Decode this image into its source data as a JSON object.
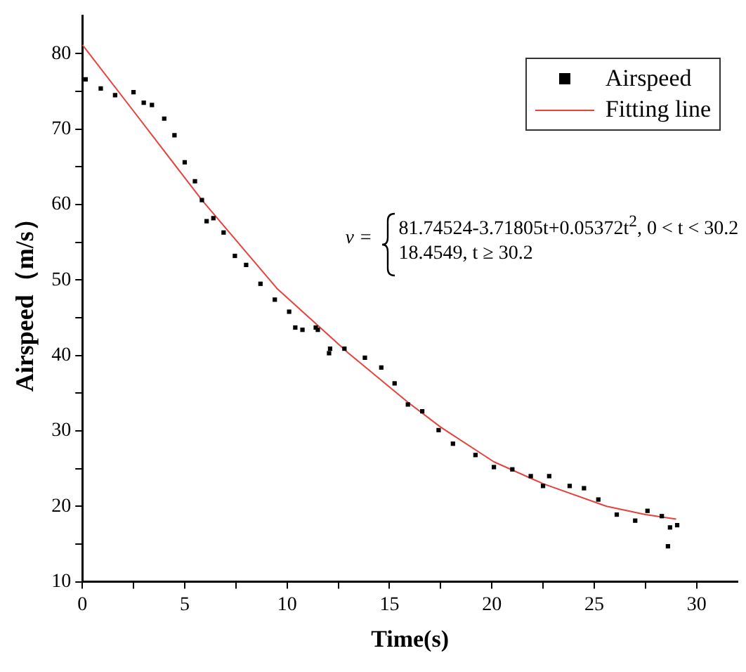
{
  "chart_data": {
    "type": "scatter",
    "xlabel": "Time(s)",
    "ylabel": "Airspeed（m/s）",
    "xlim": [
      0,
      32
    ],
    "ylim": [
      10,
      85
    ],
    "xticks": [
      0,
      {
        "value": 2.5,
        "label": null
      },
      5,
      {
        "value": 7.5,
        "label": null
      },
      10,
      {
        "value": 12.5,
        "label": null
      },
      15,
      {
        "value": 17.5,
        "label": null
      },
      20,
      {
        "value": 22.5,
        "label": null
      },
      25,
      {
        "value": 27.5,
        "label": null
      },
      30
    ],
    "yticks": [
      10,
      {
        "value": 15,
        "label": null
      },
      20,
      {
        "value": 25,
        "label": null
      },
      30,
      {
        "value": 35,
        "label": null
      },
      40,
      {
        "value": 45,
        "label": null
      },
      50,
      {
        "value": 55,
        "label": null
      },
      60,
      {
        "value": 65,
        "label": null
      },
      70,
      {
        "value": 75,
        "label": null
      },
      80
    ],
    "grid": false,
    "legend": "top right",
    "marker": "square",
    "annotations": [
      "v =",
      "81.74524-3.71805t+0.05372t$^{2}$, 0 < t < 30.2",
      "18.4549, t ≥ 30.2"
    ],
    "series": [
      {
        "name": "Airspeed",
        "type": "scatter",
        "color": "#000000",
        "x": [
          0.16,
          0.9,
          1.6,
          2.5,
          3.0,
          3.4,
          4.0,
          4.5,
          5.0,
          5.5,
          5.84,
          6.07,
          6.4,
          6.9,
          7.45,
          8.0,
          8.7,
          9.4,
          10.1,
          10.4,
          10.75,
          11.4,
          11.5,
          12.05,
          12.1,
          12.8,
          13.8,
          14.6,
          15.25,
          15.9,
          16.6,
          17.4,
          18.1,
          19.2,
          20.1,
          21.0,
          21.9,
          22.5,
          22.8,
          23.8,
          24.5,
          25.2,
          26.1,
          27.0,
          27.6,
          28.3,
          28.6,
          28.7,
          29.05
        ],
        "values": [
          76.6,
          75.4,
          74.5,
          74.9,
          73.5,
          73.2,
          71.4,
          69.2,
          65.6,
          63.1,
          60.6,
          57.8,
          58.2,
          56.3,
          53.2,
          52.0,
          49.5,
          47.4,
          45.8,
          43.7,
          43.4,
          43.7,
          43.4,
          40.3,
          40.9,
          40.9,
          39.7,
          38.4,
          36.3,
          33.5,
          32.6,
          30.1,
          28.3,
          26.8,
          25.2,
          24.9,
          24.0,
          22.7,
          24.0,
          22.7,
          22.4,
          20.9,
          18.9,
          18.1,
          19.4,
          18.7,
          14.7,
          17.2,
          17.5
        ]
      },
      {
        "name": "Fitting line",
        "type": "line",
        "color": "#e8413c",
        "marker": "none",
        "x": [
          0,
          2.5,
          5.84,
          9.5,
          13,
          15.9,
          17.5,
          20.1,
          22.5,
          25.6,
          27.5,
          29
        ],
        "values": [
          81.2,
          72.4,
          60.6,
          48.9,
          40.3,
          33.8,
          30.5,
          25.9,
          23.0,
          20.0,
          18.9,
          18.3
        ]
      }
    ]
  }
}
